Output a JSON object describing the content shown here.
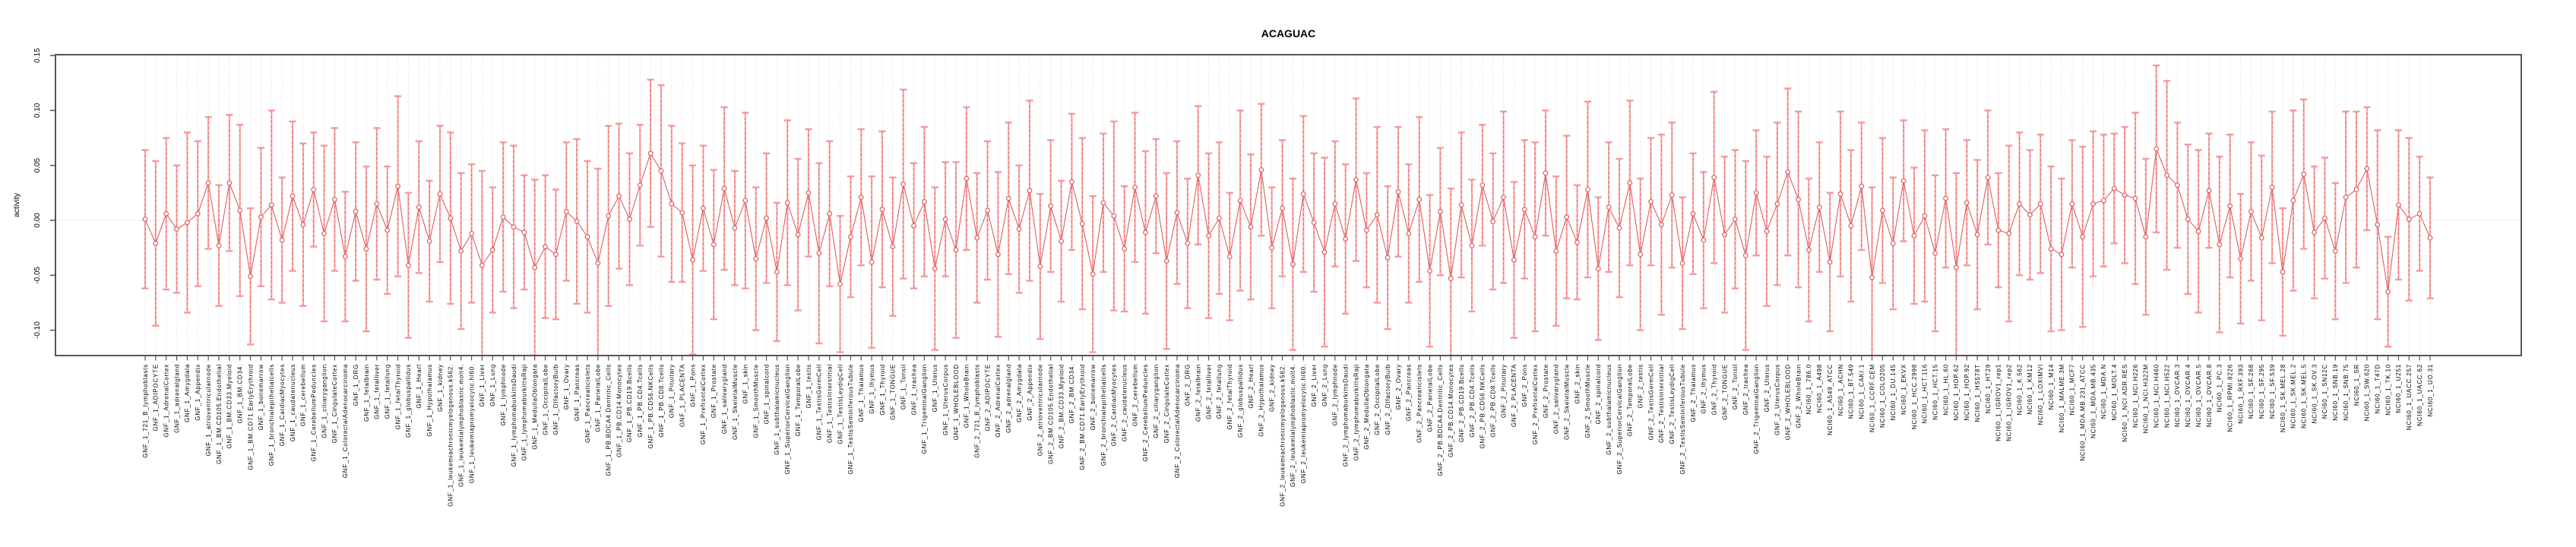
{
  "chart_data": {
    "type": "line",
    "subtype": "points-with-error-bars",
    "title": "ACAGUAC",
    "xlabel": "",
    "ylabel": "activity",
    "ylim": [
      -0.123,
      0.151
    ],
    "ytick_values": [
      0.15,
      0.1,
      0.05,
      0.0,
      -0.05,
      -0.1
    ],
    "ytick_labels": [
      "0.15",
      "0.10",
      "0.05",
      "0.00",
      "-0.05",
      "-0.10"
    ],
    "grid": "dotted vertical line at every category; dotted horizontal line at y=0",
    "legend": "none",
    "marker": "open-circle",
    "n_points": 218,
    "categories": [
      "GNF_1_721_B_lymphoblasts",
      "GNF_1_ADIPOCYTE",
      "GNF_1_AdrenalCortex",
      "GNF_1_adrenalgland",
      "GNF_1_Amygdala",
      "GNF_1_Appendix",
      "GNF_1_atrioventricularnode",
      "GNF_1_BM.CD105.Endothelial",
      "GNF_1_BM.CD33.Myeloid",
      "GNF_1_BM.CD34.",
      "GNF_1_BM.CD71.EarlyErythroid",
      "GNF_1_bonemarrow",
      "GNF_1_bronchialepithelialcells",
      "GNF_1_CardiacMyocytes",
      "GNF_1_caudatenucleus",
      "GNF_1_cerebellum",
      "GNF_1_CerebellumPeduncles",
      "GNF_1_ciliaryganglion",
      "GNF_1_CingulateCortex",
      "GNF_1_ColorectalAdenocarcinoma",
      "GNF_1_DRG",
      "GNF_1_fetalbrain",
      "GNF_1_fetalliver",
      "GNF_1_fetallung",
      "GNF_1_fetalThyroid",
      "GNF_1_globuspallidus",
      "GNF_1_Heart",
      "GNF_1_Hypothalamus",
      "GNF_1_kidney",
      "GNF_1_leukemiachronicmyelogenous.k562.",
      "GNF_1_leukemialymphoblastic.molt4.",
      "GNF_1_leukemiapromyelocytic.hl60.",
      "GNF_1_Liver",
      "GNF_1_Lung",
      "GNF_1_lymphnode",
      "GNF_1_lymphomaburkittsDaudi",
      "GNF_1_lymphomaburkittsRaji",
      "GNF_1_MedullaOblongata",
      "GNF_1_OccipitalLobe",
      "GNF_1_OlfactoryBulb",
      "GNF_1_Ovary",
      "GNF_1_Pancreas",
      "GNF_1_Pancreaticislets",
      "GNF_1_ParietalLobe",
      "GNF_1_PB.BDCA4.Dentritic_Cells",
      "GNF_1_PB.CD14.Monocytes",
      "GNF_1_PB.CD19.Bcells",
      "GNF_1_PB.CD4.Tcells",
      "GNF_1_PB.CD56.NKCells",
      "GNF_1_PB.CD8.Tcells",
      "GNF_1_Pituitary",
      "GNF_1_PLACENTA",
      "GNF_1_Pons",
      "GNF_1_PrefrontalCortex",
      "GNF_1_Prostate",
      "GNF_1_salivarygland",
      "GNF_1_SkeletalMuscle",
      "GNF_1_skin",
      "GNF_1_SmoothMuscle",
      "GNF_1_spinalcord",
      "GNF_1_subthalamicnucleus",
      "GNF_1_SuperiorCervicalGanglion",
      "GNF_1_TemporalLobe",
      "GNF_1_testis",
      "GNF_1_TestisGermCell",
      "GNF_1_TestisInterstitial",
      "GNF_1_TestisLeydigCell",
      "GNF_1_TestisSeminiferousTubule",
      "GNF_1_Thalamus",
      "GNF_1_thymus",
      "GNF_1_Thyroid",
      "GNF_1_TONGUE",
      "GNF_1_Tonsil",
      "GNF_1_trachea",
      "GNF_1_TrigeminalGanglion",
      "GNF_1_Uterus",
      "GNF_1_UterusCorpus",
      "GNF_1_WHOLEBLOOD",
      "GNF_1_WholeBrain",
      "GNF_2_721_B_lymphoblasts",
      "GNF_2_ADIPOCYTE",
      "GNF_2_AdrenalCortex",
      "GNF_2_adrenalgland",
      "GNF_2_Amygdala",
      "GNF_2_Appendix",
      "GNF_2_atrioventricularnode",
      "GNF_2_BM.CD105.Endothelial",
      "GNF_2_BM.CD33.Myeloid",
      "GNF_2_BM.CD34.",
      "GNF_2_BM.CD71.EarlyErythroid",
      "GNF_2_bonemarrow",
      "GNF_2_bronchialepithelialcells",
      "GNF_2_CardiacMyocytes",
      "GNF_2_caudatenucleus",
      "GNF_2_cerebellum",
      "GNF_2_CerebellumPeduncles",
      "GNF_2_ciliaryganglion",
      "GNF_2_CingulateCortex",
      "GNF_2_ColorectalAdenocarcinoma",
      "GNF_2_DRG",
      "GNF_2_fetalbrain",
      "GNF_2_fetalliver",
      "GNF_2_fetallung",
      "GNF_2_fetalThyroid",
      "GNF_2_globuspallidus",
      "GNF_2_Heart",
      "GNF_2_Hypothalamus",
      "GNF_2_kidney",
      "GNF_2_leukemiachronicmyelogenous.k562.",
      "GNF_2_leukemialymphoblastic.molt4.",
      "GNF_2_leukemiapromyelocytic.hl60.",
      "GNF_2_Liver",
      "GNF_2_Lung",
      "GNF_2_lymphnode",
      "GNF_2_lymphomaburkittsDaudi",
      "GNF_2_lymphomaburkittsRaji",
      "GNF_2_MedullaOblongata",
      "GNF_2_OccipitalLobe",
      "GNF_2_OlfactoryBulb",
      "GNF_2_Ovary",
      "GNF_2_Pancreas",
      "GNF_2_Pancreaticislets",
      "GNF_2_ParietalLobe",
      "GNF_2_PB.BDCA4.Dentritic_Cells",
      "GNF_2_PB.CD14.Monocytes",
      "GNF_2_PB.CD19.Bcells",
      "GNF_2_PB.CD4.Tcells",
      "GNF_2_PB.CD56.NKCells",
      "GNF_2_PB.CD8.Tcells",
      "GNF_2_Pituitary",
      "GNF_2_PLACENTA",
      "GNF_2_Pons",
      "GNF_2_PrefrontalCortex",
      "GNF_2_Prostate",
      "GNF_2_salivarygland",
      "GNF_2_SkeletalMuscle",
      "GNF_2_skin",
      "GNF_2_SmoothMuscle",
      "GNF_2_spinalcord",
      "GNF_2_subthalamicnucleus",
      "GNF_2_SuperiorCervicalGanglion",
      "GNF_2_TemporalLobe",
      "GNF_2_testis",
      "GNF_2_TestisGermCell",
      "GNF_2_TestisInterstitial",
      "GNF_2_TestisLeydigCell",
      "GNF_2_TestisSeminiferousTubule",
      "GNF_2_Thalamus",
      "GNF_2_thymus",
      "GNF_2_Thyroid",
      "GNF_2_TONGUE",
      "GNF_2_Tonsil",
      "GNF_2_trachea",
      "GNF_2_TrigeminalGanglion",
      "GNF_2_Uterus",
      "GNF_2_UterusCorpus",
      "GNF_2_WHOLEBLOOD",
      "GNF_2_WholeBrain",
      "NCI60_1_786.0",
      "NCI60_1_A498",
      "NCI60_1_A549_ATCC",
      "NCI60_1_ACHN",
      "NCI60_1_BT.549",
      "NCI60_1_CAKI.1",
      "NCI60_1_CCRF.CEM",
      "NCI60_1_COLO205",
      "NCI60_1_DU.145",
      "NCI60_1_EKVX",
      "NCI60_1_HCC.2998",
      "NCI60_1_HCT.116",
      "NCI60_1_HCT.15",
      "NCI60_1_HL.60",
      "NCI60_1_HOP.62",
      "NCI60_1_HOP.92",
      "NCI60_1_HS578T",
      "NCI60_1_HT29",
      "NCI60_1_IGROV1_rep1",
      "NCI60_1_IGROV1_rep2",
      "NCI60_1_K.562",
      "NCI60_1_KM12",
      "NCI60_1_LOXIMVI",
      "NCI60_1_M14",
      "NCI60_1_MALME.3M",
      "NCI60_1_MCF7",
      "NCI60_1_MDA.MB.231_ATCC",
      "NCI60_1_MDA.MB.435",
      "NCI60_1_MDA.N",
      "NCI60_1_MOLT.4",
      "NCI60_1_NCI.ADR.RES",
      "NCI60_1_NCI.H226",
      "NCI60_1_NCI.H322M",
      "NCI60_1_NCI.H460",
      "NCI60_1_NCI.H522",
      "NCI60_1_OVCAR.3",
      "NCI60_1_OVCAR.4",
      "NCI60_1_OVCAR.5",
      "NCI60_1_OVCAR.8",
      "NCI60_1_PC.3",
      "NCI60_1_RPMI.8226",
      "NCI60_1_RXF.393",
      "NCI60_1_SF.268",
      "NCI60_1_SF.295",
      "NCI60_1_SF.539",
      "NCI60_1_SK.MEL.28",
      "NCI60_1_SK.MEL.2",
      "NCI60_1_SK.MEL.5",
      "NCI60_1_SK.OV.3",
      "NCI60_1_SN12C",
      "NCI60_1_SNB.19",
      "NCI60_1_SNB.75",
      "NCI60_1_SR",
      "NCI60_1_SW.620",
      "NCI60_1_T47D",
      "NCI60_1_TK.10",
      "NCI60_1_U251",
      "NCI60_1_UACC.257",
      "NCI60_1_UACC.62",
      "NCI60_1_UO.31"
    ],
    "values": [
      0.001,
      -0.021,
      0.006,
      -0.008,
      -0.002,
      0.006,
      0.034,
      -0.023,
      0.034,
      0.009,
      -0.051,
      0.003,
      0.014,
      -0.018,
      0.022,
      -0.004,
      0.028,
      -0.012,
      0.019,
      -0.033,
      0.008,
      -0.026,
      0.015,
      -0.009,
      0.031,
      -0.041,
      0.012,
      -0.019,
      0.024,
      0.002,
      -0.028,
      -0.012,
      -0.041,
      -0.027,
      0.003,
      -0.006,
      -0.011,
      -0.043,
      -0.024,
      -0.031,
      0.008,
      -0.001,
      -0.015,
      -0.039,
      0.004,
      0.022,
      0.001,
      0.032,
      0.061,
      0.045,
      0.015,
      0.007,
      -0.036,
      0.011,
      -0.022,
      0.029,
      -0.007,
      0.018,
      -0.035,
      0.002,
      -0.047,
      0.016,
      -0.013,
      0.025,
      -0.03,
      0.006,
      -0.058,
      -0.015,
      0.021,
      -0.038,
      0.01,
      -0.024,
      0.033,
      -0.005,
      0.017,
      -0.044,
      0.001,
      -0.027,
      0.038,
      -0.016,
      0.009,
      -0.031,
      0.02,
      -0.008,
      0.027,
      -0.042,
      0.013,
      -0.019,
      0.035,
      -0.003,
      -0.049,
      0.016,
      0.004,
      -0.026,
      0.03,
      -0.011,
      0.022,
      -0.037,
      0.007,
      -0.021,
      0.041,
      -0.014,
      0.002,
      -0.033,
      0.018,
      -0.006,
      0.046,
      -0.025,
      0.011,
      -0.04,
      0.024,
      -0.002,
      -0.029,
      0.015,
      -0.017,
      0.037,
      -0.009,
      0.005,
      -0.034,
      0.026,
      -0.012,
      0.019,
      -0.046,
      0.008,
      -0.053,
      0.014,
      -0.023,
      0.032,
      -0.001,
      0.021,
      -0.036,
      0.01,
      -0.015,
      0.043,
      -0.028,
      0.003,
      -0.02,
      0.028,
      -0.044,
      0.012,
      -0.007,
      0.034,
      -0.031,
      0.017,
      -0.004,
      0.023,
      -0.039,
      0.006,
      -0.018,
      0.039,
      -0.013,
      0.001,
      -0.032,
      0.025,
      -0.01,
      0.015,
      0.044,
      0.019,
      -0.027,
      0.012,
      -0.038,
      0.024,
      -0.005,
      0.031,
      -0.052,
      0.009,
      -0.021,
      0.036,
      -0.014,
      0.004,
      -0.03,
      0.02,
      -0.043,
      0.016,
      -0.013,
      0.039,
      -0.009,
      -0.012,
      0.015,
      0.005,
      0.015,
      -0.026,
      -0.031,
      0.015,
      -0.015,
      0.015,
      0.018,
      0.029,
      0.023,
      0.02,
      -0.015,
      0.065,
      0.041,
      0.032,
      0.001,
      -0.01,
      0.027,
      -0.022,
      0.013,
      -0.035,
      0.008,
      -0.016,
      0.03,
      -0.047,
      0.018,
      0.042,
      -0.011,
      0.002,
      -0.028,
      0.021,
      0.028,
      0.047,
      -0.004,
      -0.065,
      0.014,
      0.001,
      0.006,
      -0.016
    ],
    "ci_half": [
      0.063,
      0.075,
      0.069,
      0.058,
      0.082,
      0.066,
      0.06,
      0.055,
      0.062,
      0.078,
      0.062,
      0.063,
      0.086,
      0.057,
      0.068,
      0.074,
      0.052,
      0.08,
      0.065,
      0.059,
      0.063,
      0.075,
      0.069,
      0.058,
      0.082,
      0.066,
      0.06,
      0.055,
      0.062,
      0.078,
      0.071,
      0.063,
      0.086,
      0.057,
      0.068,
      0.074,
      0.052,
      0.08,
      0.065,
      0.059,
      0.063,
      0.075,
      0.069,
      0.086,
      0.082,
      0.066,
      0.06,
      0.055,
      0.067,
      0.078,
      0.071,
      0.063,
      0.086,
      0.057,
      0.068,
      0.074,
      0.052,
      0.08,
      0.065,
      0.059,
      0.063,
      0.075,
      0.069,
      0.058,
      0.082,
      0.066,
      0.062,
      0.055,
      0.062,
      0.078,
      0.071,
      0.063,
      0.086,
      0.057,
      0.068,
      0.074,
      0.052,
      0.08,
      0.065,
      0.059,
      0.063,
      0.075,
      0.069,
      0.058,
      0.082,
      0.066,
      0.06,
      0.055,
      0.062,
      0.078,
      0.071,
      0.063,
      0.086,
      0.057,
      0.068,
      0.074,
      0.052,
      0.08,
      0.065,
      0.059,
      0.063,
      0.075,
      0.069,
      0.058,
      0.082,
      0.066,
      0.06,
      0.055,
      0.062,
      0.078,
      0.071,
      0.063,
      0.086,
      0.057,
      0.068,
      0.074,
      0.052,
      0.08,
      0.065,
      0.059,
      0.063,
      0.075,
      0.069,
      0.058,
      0.082,
      0.066,
      0.06,
      0.055,
      0.062,
      0.078,
      0.071,
      0.063,
      0.086,
      0.057,
      0.068,
      0.074,
      0.052,
      0.08,
      0.065,
      0.059,
      0.063,
      0.075,
      0.069,
      0.058,
      0.082,
      0.066,
      0.06,
      0.055,
      0.062,
      0.078,
      0.071,
      0.063,
      0.086,
      0.057,
      0.068,
      0.074,
      0.076,
      0.08,
      0.065,
      0.059,
      0.063,
      0.075,
      0.069,
      0.058,
      0.082,
      0.066,
      0.06,
      0.055,
      0.062,
      0.078,
      0.071,
      0.063,
      0.086,
      0.057,
      0.068,
      0.061,
      0.052,
      0.08,
      0.065,
      0.059,
      0.063,
      0.075,
      0.069,
      0.058,
      0.082,
      0.066,
      0.06,
      0.05,
      0.062,
      0.078,
      0.071,
      0.076,
      0.086,
      0.057,
      0.068,
      0.074,
      0.052,
      0.08,
      0.065,
      0.059,
      0.063,
      0.075,
      0.069,
      0.058,
      0.082,
      0.068,
      0.06,
      0.055,
      0.062,
      0.078,
      0.071,
      0.056,
      0.086,
      0.05,
      0.068,
      0.074,
      0.052,
      0.055
    ]
  },
  "colors": {
    "point_and_line": "#e25d5d",
    "error_bar_light": "#f7a8a8",
    "error_bar_cap": "#f79999",
    "grid": "#dcdcdc",
    "zero_line": "#cfcfcf",
    "axis_box": "#555555",
    "text": "#000000",
    "background": "#ffffff"
  }
}
